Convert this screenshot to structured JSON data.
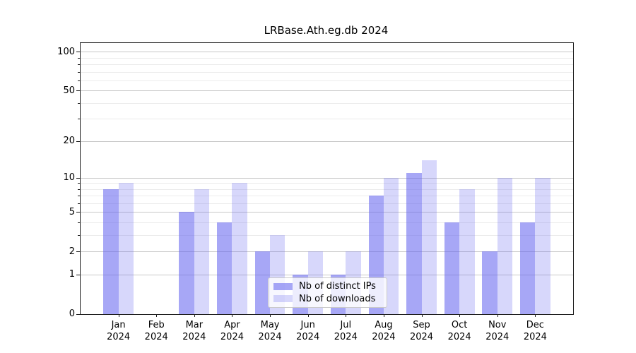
{
  "chart_data": {
    "type": "bar",
    "title": "LRBase.Ath.eg.db 2024",
    "categories": [
      "Jan",
      "Feb",
      "Mar",
      "Apr",
      "May",
      "Jun",
      "Jul",
      "Aug",
      "Sep",
      "Oct",
      "Nov",
      "Dec"
    ],
    "category_year": "2024",
    "series": [
      {
        "name": "Nb of distinct IPs",
        "color": "rgba(100,100,240,0.57)",
        "color_hex_on_white": "#a6a6f6",
        "values": [
          8,
          0,
          5,
          4,
          2,
          1,
          1,
          7,
          11,
          4,
          2,
          4
        ]
      },
      {
        "name": "Nb of downloads",
        "color": "rgba(100,100,240,0.26)",
        "color_hex_on_white": "#d7d7fb",
        "values": [
          9,
          0,
          8,
          9,
          3,
          2,
          2,
          10,
          14,
          8,
          10,
          10
        ]
      }
    ],
    "xlabel": "",
    "ylabel": "",
    "yscale": "log1p",
    "ylim": [
      0,
      119
    ],
    "y_major_ticks": [
      0,
      1,
      2,
      5,
      10,
      20,
      50,
      100
    ],
    "y_minor_ticks": [
      3,
      4,
      6,
      7,
      8,
      9,
      30,
      40,
      60,
      70,
      80,
      90
    ],
    "grid": true,
    "legend_position": "lower center",
    "colors": {
      "grid_major": "#c8c8c8",
      "grid_minor": "#ebebeb",
      "axis": "#1a1a1a"
    }
  }
}
